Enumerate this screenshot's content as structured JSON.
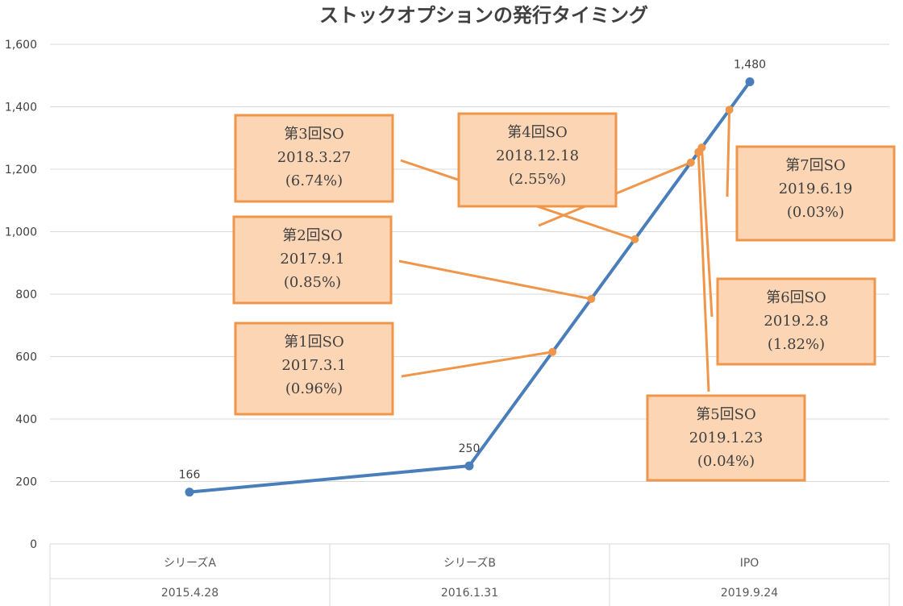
{
  "chart_data": {
    "type": "line",
    "title": "ストックオプションの発行タイミング",
    "ylim": [
      0,
      1600
    ],
    "yticks": [
      "0",
      "200",
      "400",
      "600",
      "800",
      "1,000",
      "1,200",
      "1,400",
      "1,600"
    ],
    "grid": true,
    "categories": [
      {
        "name": "シリーズA",
        "date": "2015.4.28"
      },
      {
        "name": "シリーズB",
        "date": "2016.1.31"
      },
      {
        "name": "IPO",
        "date": "2019.9.24"
      }
    ],
    "series": [
      {
        "color": "#4a7ebb",
        "x": [
          "2015-04-28",
          "2016-01-31",
          "2019-09-24"
        ],
        "values": [
          166,
          250,
          1480
        ],
        "labels": [
          "166",
          "250",
          "1,480"
        ]
      }
    ],
    "annotations": [
      {
        "date": "2017-03-01",
        "lines": [
          "第1回SO",
          "2017.3.1",
          "(0.96%)"
        ]
      },
      {
        "date": "2017-09-01",
        "lines": [
          "第2回SO",
          "2017.9.1",
          "(0.85%)"
        ]
      },
      {
        "date": "2018-03-27",
        "lines": [
          "第3回SO",
          "2018.3.27",
          "(6.74%)"
        ]
      },
      {
        "date": "2018-12-18",
        "lines": [
          "第4回SO",
          "2018.12.18",
          "(2.55%)"
        ]
      },
      {
        "date": "2019-01-23",
        "lines": [
          "第5回SO",
          "2019.1.23",
          "(0.04%)"
        ]
      },
      {
        "date": "2019-02-08",
        "lines": [
          "第6回SO",
          "2019.2.8",
          "(1.82%)"
        ]
      },
      {
        "date": "2019-06-19",
        "lines": [
          "第7回SO",
          "2019.6.19",
          "(0.03%)"
        ]
      }
    ],
    "colors": {
      "line": "#4a7ebb",
      "callout_border": "#f0964a",
      "callout_fill": "#fcd5b5",
      "grid": "#d9d9d9"
    }
  }
}
